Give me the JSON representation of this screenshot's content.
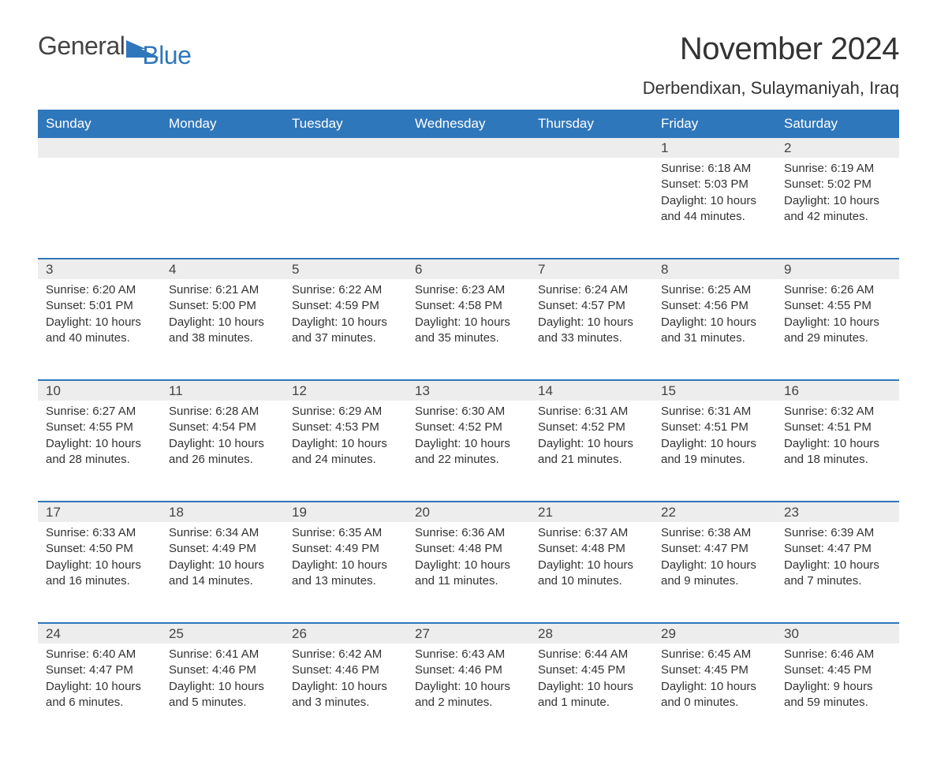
{
  "logo": {
    "text1": "General",
    "text2": "Blue",
    "accent_color": "#2f77bb"
  },
  "title": "November 2024",
  "location": "Derbendixan, Sulaymaniyah, Iraq",
  "colors": {
    "header_bg": "#2f77bb",
    "header_text": "#ffffff",
    "daynum_bg": "#ededed",
    "row_border": "#2f77bb",
    "body_text": "#333333",
    "page_bg": "#ffffff"
  },
  "typography": {
    "title_fontsize": 40,
    "location_fontsize": 22,
    "header_fontsize": 17,
    "daynum_fontsize": 17,
    "cell_fontsize": 15,
    "font_family": "Segoe UI"
  },
  "weekdays": [
    "Sunday",
    "Monday",
    "Tuesday",
    "Wednesday",
    "Thursday",
    "Friday",
    "Saturday"
  ],
  "weeks": [
    [
      null,
      null,
      null,
      null,
      null,
      {
        "day": "1",
        "sunrise": "Sunrise: 6:18 AM",
        "sunset": "Sunset: 5:03 PM",
        "daylight1": "Daylight: 10 hours",
        "daylight2": "and 44 minutes."
      },
      {
        "day": "2",
        "sunrise": "Sunrise: 6:19 AM",
        "sunset": "Sunset: 5:02 PM",
        "daylight1": "Daylight: 10 hours",
        "daylight2": "and 42 minutes."
      }
    ],
    [
      {
        "day": "3",
        "sunrise": "Sunrise: 6:20 AM",
        "sunset": "Sunset: 5:01 PM",
        "daylight1": "Daylight: 10 hours",
        "daylight2": "and 40 minutes."
      },
      {
        "day": "4",
        "sunrise": "Sunrise: 6:21 AM",
        "sunset": "Sunset: 5:00 PM",
        "daylight1": "Daylight: 10 hours",
        "daylight2": "and 38 minutes."
      },
      {
        "day": "5",
        "sunrise": "Sunrise: 6:22 AM",
        "sunset": "Sunset: 4:59 PM",
        "daylight1": "Daylight: 10 hours",
        "daylight2": "and 37 minutes."
      },
      {
        "day": "6",
        "sunrise": "Sunrise: 6:23 AM",
        "sunset": "Sunset: 4:58 PM",
        "daylight1": "Daylight: 10 hours",
        "daylight2": "and 35 minutes."
      },
      {
        "day": "7",
        "sunrise": "Sunrise: 6:24 AM",
        "sunset": "Sunset: 4:57 PM",
        "daylight1": "Daylight: 10 hours",
        "daylight2": "and 33 minutes."
      },
      {
        "day": "8",
        "sunrise": "Sunrise: 6:25 AM",
        "sunset": "Sunset: 4:56 PM",
        "daylight1": "Daylight: 10 hours",
        "daylight2": "and 31 minutes."
      },
      {
        "day": "9",
        "sunrise": "Sunrise: 6:26 AM",
        "sunset": "Sunset: 4:55 PM",
        "daylight1": "Daylight: 10 hours",
        "daylight2": "and 29 minutes."
      }
    ],
    [
      {
        "day": "10",
        "sunrise": "Sunrise: 6:27 AM",
        "sunset": "Sunset: 4:55 PM",
        "daylight1": "Daylight: 10 hours",
        "daylight2": "and 28 minutes."
      },
      {
        "day": "11",
        "sunrise": "Sunrise: 6:28 AM",
        "sunset": "Sunset: 4:54 PM",
        "daylight1": "Daylight: 10 hours",
        "daylight2": "and 26 minutes."
      },
      {
        "day": "12",
        "sunrise": "Sunrise: 6:29 AM",
        "sunset": "Sunset: 4:53 PM",
        "daylight1": "Daylight: 10 hours",
        "daylight2": "and 24 minutes."
      },
      {
        "day": "13",
        "sunrise": "Sunrise: 6:30 AM",
        "sunset": "Sunset: 4:52 PM",
        "daylight1": "Daylight: 10 hours",
        "daylight2": "and 22 minutes."
      },
      {
        "day": "14",
        "sunrise": "Sunrise: 6:31 AM",
        "sunset": "Sunset: 4:52 PM",
        "daylight1": "Daylight: 10 hours",
        "daylight2": "and 21 minutes."
      },
      {
        "day": "15",
        "sunrise": "Sunrise: 6:31 AM",
        "sunset": "Sunset: 4:51 PM",
        "daylight1": "Daylight: 10 hours",
        "daylight2": "and 19 minutes."
      },
      {
        "day": "16",
        "sunrise": "Sunrise: 6:32 AM",
        "sunset": "Sunset: 4:51 PM",
        "daylight1": "Daylight: 10 hours",
        "daylight2": "and 18 minutes."
      }
    ],
    [
      {
        "day": "17",
        "sunrise": "Sunrise: 6:33 AM",
        "sunset": "Sunset: 4:50 PM",
        "daylight1": "Daylight: 10 hours",
        "daylight2": "and 16 minutes."
      },
      {
        "day": "18",
        "sunrise": "Sunrise: 6:34 AM",
        "sunset": "Sunset: 4:49 PM",
        "daylight1": "Daylight: 10 hours",
        "daylight2": "and 14 minutes."
      },
      {
        "day": "19",
        "sunrise": "Sunrise: 6:35 AM",
        "sunset": "Sunset: 4:49 PM",
        "daylight1": "Daylight: 10 hours",
        "daylight2": "and 13 minutes."
      },
      {
        "day": "20",
        "sunrise": "Sunrise: 6:36 AM",
        "sunset": "Sunset: 4:48 PM",
        "daylight1": "Daylight: 10 hours",
        "daylight2": "and 11 minutes."
      },
      {
        "day": "21",
        "sunrise": "Sunrise: 6:37 AM",
        "sunset": "Sunset: 4:48 PM",
        "daylight1": "Daylight: 10 hours",
        "daylight2": "and 10 minutes."
      },
      {
        "day": "22",
        "sunrise": "Sunrise: 6:38 AM",
        "sunset": "Sunset: 4:47 PM",
        "daylight1": "Daylight: 10 hours",
        "daylight2": "and 9 minutes."
      },
      {
        "day": "23",
        "sunrise": "Sunrise: 6:39 AM",
        "sunset": "Sunset: 4:47 PM",
        "daylight1": "Daylight: 10 hours",
        "daylight2": "and 7 minutes."
      }
    ],
    [
      {
        "day": "24",
        "sunrise": "Sunrise: 6:40 AM",
        "sunset": "Sunset: 4:47 PM",
        "daylight1": "Daylight: 10 hours",
        "daylight2": "and 6 minutes."
      },
      {
        "day": "25",
        "sunrise": "Sunrise: 6:41 AM",
        "sunset": "Sunset: 4:46 PM",
        "daylight1": "Daylight: 10 hours",
        "daylight2": "and 5 minutes."
      },
      {
        "day": "26",
        "sunrise": "Sunrise: 6:42 AM",
        "sunset": "Sunset: 4:46 PM",
        "daylight1": "Daylight: 10 hours",
        "daylight2": "and 3 minutes."
      },
      {
        "day": "27",
        "sunrise": "Sunrise: 6:43 AM",
        "sunset": "Sunset: 4:46 PM",
        "daylight1": "Daylight: 10 hours",
        "daylight2": "and 2 minutes."
      },
      {
        "day": "28",
        "sunrise": "Sunrise: 6:44 AM",
        "sunset": "Sunset: 4:45 PM",
        "daylight1": "Daylight: 10 hours",
        "daylight2": "and 1 minute."
      },
      {
        "day": "29",
        "sunrise": "Sunrise: 6:45 AM",
        "sunset": "Sunset: 4:45 PM",
        "daylight1": "Daylight: 10 hours",
        "daylight2": "and 0 minutes."
      },
      {
        "day": "30",
        "sunrise": "Sunrise: 6:46 AM",
        "sunset": "Sunset: 4:45 PM",
        "daylight1": "Daylight: 9 hours",
        "daylight2": "and 59 minutes."
      }
    ]
  ]
}
